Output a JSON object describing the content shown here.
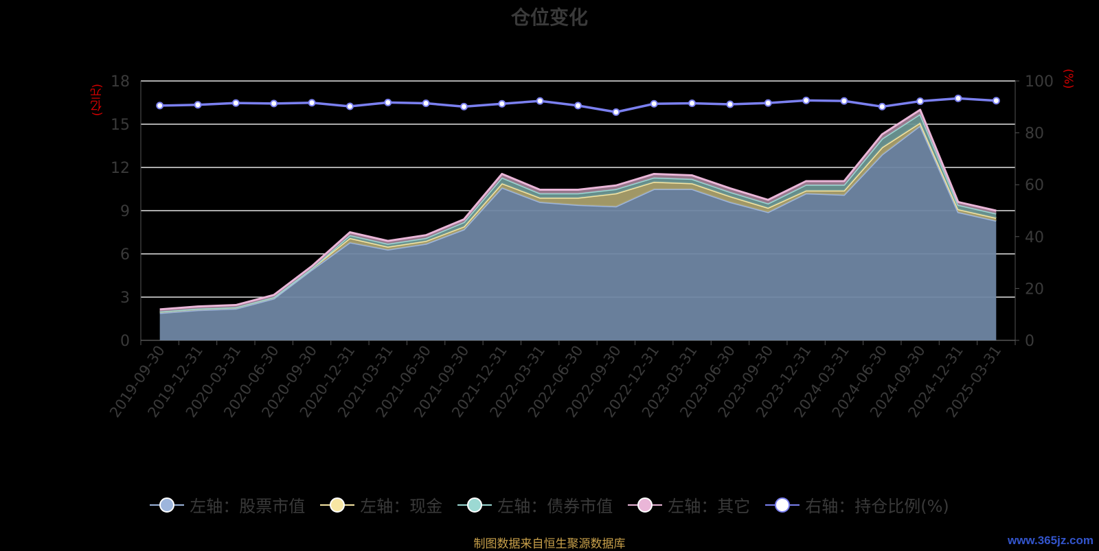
{
  "chart_data": {
    "type": "area",
    "title": "仓位变化",
    "left_unit": "(亿元)",
    "right_unit": "(%)",
    "categories": [
      "2019-09-30",
      "2019-12-31",
      "2020-03-31",
      "2020-06-30",
      "2020-09-30",
      "2020-12-31",
      "2021-03-31",
      "2021-06-30",
      "2021-09-30",
      "2021-12-31",
      "2022-03-31",
      "2022-06-30",
      "2022-09-30",
      "2022-12-31",
      "2023-03-31",
      "2023-06-30",
      "2023-09-30",
      "2023-12-31",
      "2024-03-31",
      "2024-06-30",
      "2024-09-30",
      "2024-12-31",
      "2025-03-31"
    ],
    "y_left": {
      "min": 0,
      "max": 18,
      "ticks": [
        0,
        3,
        6,
        9,
        12,
        15,
        18
      ]
    },
    "y_right": {
      "min": 0,
      "max": 100,
      "ticks": [
        0,
        20,
        40,
        60,
        80,
        100
      ]
    },
    "grid": true,
    "legend_position": "bottom",
    "series": [
      {
        "name": "左轴：股票市值",
        "axis": "left",
        "stacked": true,
        "color": "#9db5dc",
        "fill": "#6f86a3",
        "values": [
          1.9,
          2.1,
          2.2,
          2.9,
          4.9,
          6.8,
          6.3,
          6.7,
          7.7,
          10.6,
          9.6,
          9.4,
          9.3,
          10.5,
          10.5,
          9.6,
          8.9,
          10.2,
          10.1,
          12.9,
          14.9,
          8.9,
          8.3
        ]
      },
      {
        "name": "左轴：现金",
        "axis": "left",
        "stacked": true,
        "color": "#f7e6a3",
        "fill": "#a99f6c",
        "values": [
          0.1,
          0.1,
          0.1,
          0.1,
          0.1,
          0.3,
          0.2,
          0.2,
          0.2,
          0.3,
          0.3,
          0.5,
          0.9,
          0.5,
          0.4,
          0.4,
          0.3,
          0.2,
          0.3,
          0.5,
          0.2,
          0.2,
          0.2
        ]
      },
      {
        "name": "左轴：债券市值",
        "axis": "left",
        "stacked": true,
        "color": "#9cd9d3",
        "fill": "#6a9592",
        "values": [
          0.0,
          0.0,
          0.0,
          0.0,
          0.0,
          0.2,
          0.2,
          0.2,
          0.3,
          0.4,
          0.3,
          0.3,
          0.3,
          0.3,
          0.3,
          0.3,
          0.3,
          0.4,
          0.4,
          0.6,
          0.6,
          0.3,
          0.3
        ]
      },
      {
        "name": "左轴：其它",
        "axis": "left",
        "stacked": true,
        "color": "#eab6d8",
        "fill": "#9c7a90",
        "values": [
          0.15,
          0.15,
          0.15,
          0.15,
          0.15,
          0.2,
          0.2,
          0.2,
          0.2,
          0.25,
          0.25,
          0.25,
          0.25,
          0.25,
          0.25,
          0.25,
          0.25,
          0.25,
          0.25,
          0.3,
          0.3,
          0.2,
          0.2
        ]
      },
      {
        "name": "右轴：持仓比例(%)",
        "axis": "right",
        "stacked": false,
        "color": "#7b80f0",
        "fill": "#ffffff",
        "values": [
          90.5,
          90.8,
          91.5,
          91.3,
          91.6,
          90.2,
          91.7,
          91.4,
          90.1,
          91.2,
          92.3,
          90.5,
          88.0,
          91.2,
          91.4,
          91.0,
          91.5,
          92.5,
          92.3,
          90.1,
          92.2,
          93.3,
          92.4
        ]
      }
    ]
  },
  "source_text": "制图数据来自恒生聚源数据库",
  "watermark": "www.365jz.com"
}
